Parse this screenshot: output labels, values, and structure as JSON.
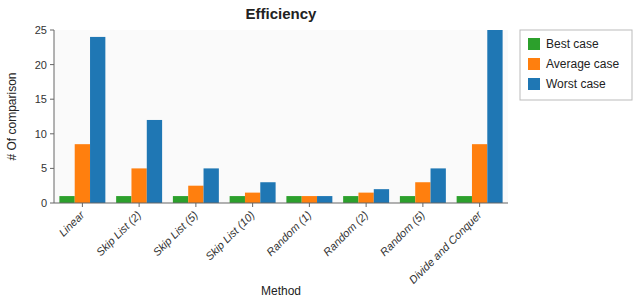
{
  "chart_data": {
    "type": "bar",
    "title": "Efficiency",
    "xlabel": "Method",
    "ylabel": "# Of comparison",
    "categories": [
      "Linear",
      "Skip List (2)",
      "Skip List (5)",
      "Skip List (10)",
      "Random (1)",
      "Random (2)",
      "Random (5)",
      "Divide and Conquer"
    ],
    "series": [
      {
        "name": "Best case",
        "color": "#2ca02c",
        "values": [
          1,
          1,
          1,
          1,
          1,
          1,
          1,
          1
        ]
      },
      {
        "name": "Average case",
        "color": "#ff7f0e",
        "values": [
          8.5,
          5,
          2.5,
          1.5,
          1,
          1.5,
          3.0,
          8.5
        ]
      },
      {
        "name": "Worst case",
        "color": "#1f77b4",
        "values": [
          24,
          12,
          5,
          3,
          1,
          2,
          5,
          25
        ]
      }
    ],
    "ylim": [
      0,
      25
    ],
    "yticks": [
      0,
      5,
      10,
      15,
      20,
      25
    ],
    "grid": false,
    "legend": "upper right"
  }
}
